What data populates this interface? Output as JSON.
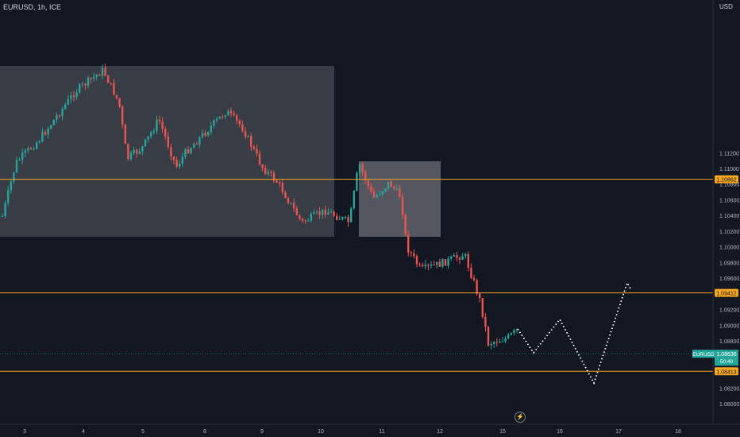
{
  "header": {
    "symbol_line": "EURUSD, 1h, ICE",
    "currency": "USD"
  },
  "price_scale": [
    "1.11200",
    "1.11000",
    "1.10800",
    "1.10600",
    "1.10400",
    "1.10200",
    "1.10000",
    "1.09800",
    "1.09600",
    "1.09200",
    "1.09000",
    "1.08800",
    "1.08200",
    "1.08000"
  ],
  "time_scale": [
    "3",
    "4",
    "5",
    "8",
    "9",
    "10",
    "11",
    "12",
    "15",
    "16",
    "17",
    "18"
  ],
  "levels": [
    {
      "label": "1.10862",
      "color": "#f5a623"
    },
    {
      "label": "1.09412",
      "color": "#f5a623"
    },
    {
      "label": "1.08413",
      "color": "#f5a623"
    }
  ],
  "current_price": {
    "symbol": "EURUSD",
    "price": "1.08636",
    "countdown": "50:40",
    "color": "#26a69a"
  },
  "colors": {
    "up": "#26a69a",
    "down": "#ef5350",
    "level": "#f5a623",
    "zone": "#ffffff"
  },
  "icons": {
    "replay": "lightning-icon"
  }
}
